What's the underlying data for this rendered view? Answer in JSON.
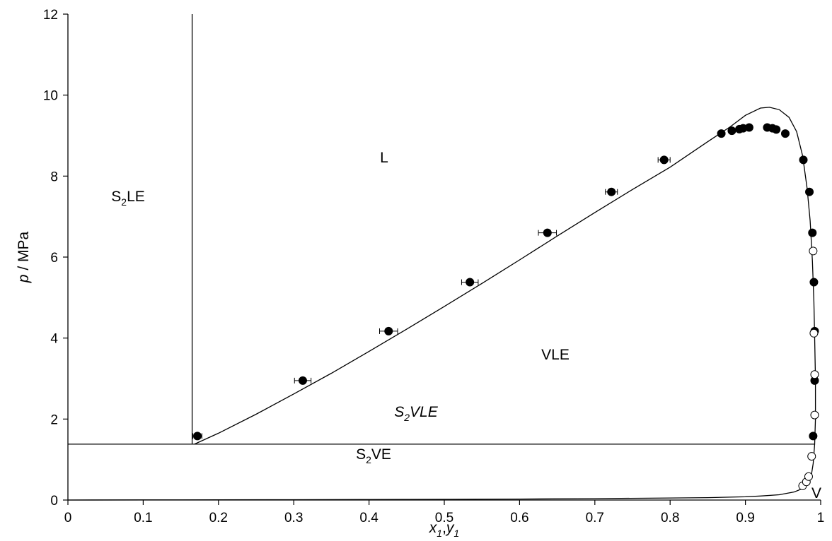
{
  "chart_data": {
    "type": "scatter",
    "title": "",
    "xlabel": {
      "x": "x",
      "x_sub": "1",
      "sep": ",",
      "y": "y",
      "y_sub": "1"
    },
    "ylabel": {
      "p": "p",
      "rest": " / MPa"
    },
    "xlim": [
      0,
      1
    ],
    "ylim": [
      0,
      12
    ],
    "x_ticks": [
      "0",
      "0.1",
      "0.2",
      "0.3",
      "0.4",
      "0.5",
      "0.6",
      "0.7",
      "0.8",
      "0.9",
      "1"
    ],
    "y_ticks": [
      "0",
      "2",
      "4",
      "6",
      "8",
      "10",
      "12"
    ],
    "grid": false,
    "colors": {
      "line": "#000000",
      "filled_marker": "#000000",
      "open_marker": "#ffffff"
    },
    "region_labels": {
      "L": "L",
      "VLE": "VLE",
      "V": "V",
      "S2LE": {
        "base": "S",
        "sub": "2",
        "rest": "LE"
      },
      "S2VE": {
        "base": "S",
        "sub": "2",
        "rest": "VE"
      },
      "S2VLE": {
        "base": "S",
        "sub": "2",
        "rest": "VLE"
      }
    },
    "series": [
      {
        "kind": "filled-points",
        "points": [
          {
            "x": 0.172,
            "y": 1.58,
            "xerr": 0.006
          },
          {
            "x": 0.312,
            "y": 2.95,
            "xerr": 0.011
          },
          {
            "x": 0.426,
            "y": 4.17,
            "xerr": 0.012
          },
          {
            "x": 0.534,
            "y": 5.38,
            "xerr": 0.011
          },
          {
            "x": 0.637,
            "y": 6.6,
            "xerr": 0.012
          },
          {
            "x": 0.722,
            "y": 7.61,
            "xerr": 0.008
          },
          {
            "x": 0.792,
            "y": 8.4,
            "xerr": 0.008
          },
          {
            "x": 0.868,
            "y": 9.05
          },
          {
            "x": 0.882,
            "y": 9.12
          },
          {
            "x": 0.892,
            "y": 9.16
          },
          {
            "x": 0.897,
            "y": 9.18
          },
          {
            "x": 0.905,
            "y": 9.2
          },
          {
            "x": 0.929,
            "y": 9.2
          },
          {
            "x": 0.936,
            "y": 9.18
          },
          {
            "x": 0.941,
            "y": 9.15
          },
          {
            "x": 0.953,
            "y": 9.05
          },
          {
            "x": 0.977,
            "y": 8.4
          },
          {
            "x": 0.985,
            "y": 7.61
          },
          {
            "x": 0.989,
            "y": 6.6
          },
          {
            "x": 0.991,
            "y": 5.38
          },
          {
            "x": 0.992,
            "y": 4.17
          },
          {
            "x": 0.992,
            "y": 2.95
          },
          {
            "x": 0.99,
            "y": 1.58
          }
        ]
      },
      {
        "kind": "open-points",
        "points": [
          {
            "x": 0.976,
            "y": 0.35
          },
          {
            "x": 0.981,
            "y": 0.45
          },
          {
            "x": 0.984,
            "y": 0.58
          },
          {
            "x": 0.988,
            "y": 1.08
          },
          {
            "x": 0.99,
            "y": 6.15
          },
          {
            "x": 0.991,
            "y": 4.12
          },
          {
            "x": 0.992,
            "y": 3.1
          },
          {
            "x": 0.992,
            "y": 2.1
          }
        ]
      },
      {
        "kind": "vle-envelope-curve",
        "points": [
          [
            0.168,
            1.38
          ],
          [
            0.2,
            1.65
          ],
          [
            0.25,
            2.12
          ],
          [
            0.3,
            2.62
          ],
          [
            0.35,
            3.13
          ],
          [
            0.4,
            3.67
          ],
          [
            0.45,
            4.22
          ],
          [
            0.5,
            4.78
          ],
          [
            0.55,
            5.35
          ],
          [
            0.6,
            5.93
          ],
          [
            0.65,
            6.52
          ],
          [
            0.7,
            7.1
          ],
          [
            0.75,
            7.67
          ],
          [
            0.8,
            8.22
          ],
          [
            0.85,
            8.85
          ],
          [
            0.88,
            9.22
          ],
          [
            0.9,
            9.5
          ],
          [
            0.92,
            9.68
          ],
          [
            0.932,
            9.7
          ],
          [
            0.945,
            9.64
          ],
          [
            0.958,
            9.45
          ],
          [
            0.968,
            9.1
          ],
          [
            0.976,
            8.5
          ],
          [
            0.982,
            7.7
          ],
          [
            0.986,
            6.9
          ],
          [
            0.989,
            5.9
          ],
          [
            0.991,
            4.9
          ],
          [
            0.992,
            4.0
          ],
          [
            0.993,
            3.0
          ],
          [
            0.993,
            2.0
          ],
          [
            0.992,
            1.38
          ],
          [
            0.99,
            0.9
          ],
          [
            0.987,
            0.55
          ],
          [
            0.983,
            0.4
          ],
          [
            0.978,
            0.3
          ],
          [
            0.965,
            0.2
          ],
          [
            0.945,
            0.13
          ],
          [
            0.92,
            0.1
          ],
          [
            0.9,
            0.08
          ],
          [
            0.85,
            0.06
          ],
          [
            0.8,
            0.05
          ],
          [
            0.7,
            0.035
          ],
          [
            0.6,
            0.025
          ],
          [
            0.5,
            0.018
          ],
          [
            0.4,
            0.012
          ],
          [
            0.3,
            0.008
          ],
          [
            0.2,
            0.005
          ],
          [
            0.1,
            0.003
          ],
          [
            0.0,
            0.0
          ]
        ]
      },
      {
        "kind": "solid-liquid-boundary",
        "points": [
          [
            0.165,
            1.38
          ],
          [
            0.165,
            12
          ]
        ]
      },
      {
        "kind": "three-phase-line",
        "points": [
          [
            0,
            1.38
          ],
          [
            0.992,
            1.38
          ]
        ]
      }
    ]
  }
}
